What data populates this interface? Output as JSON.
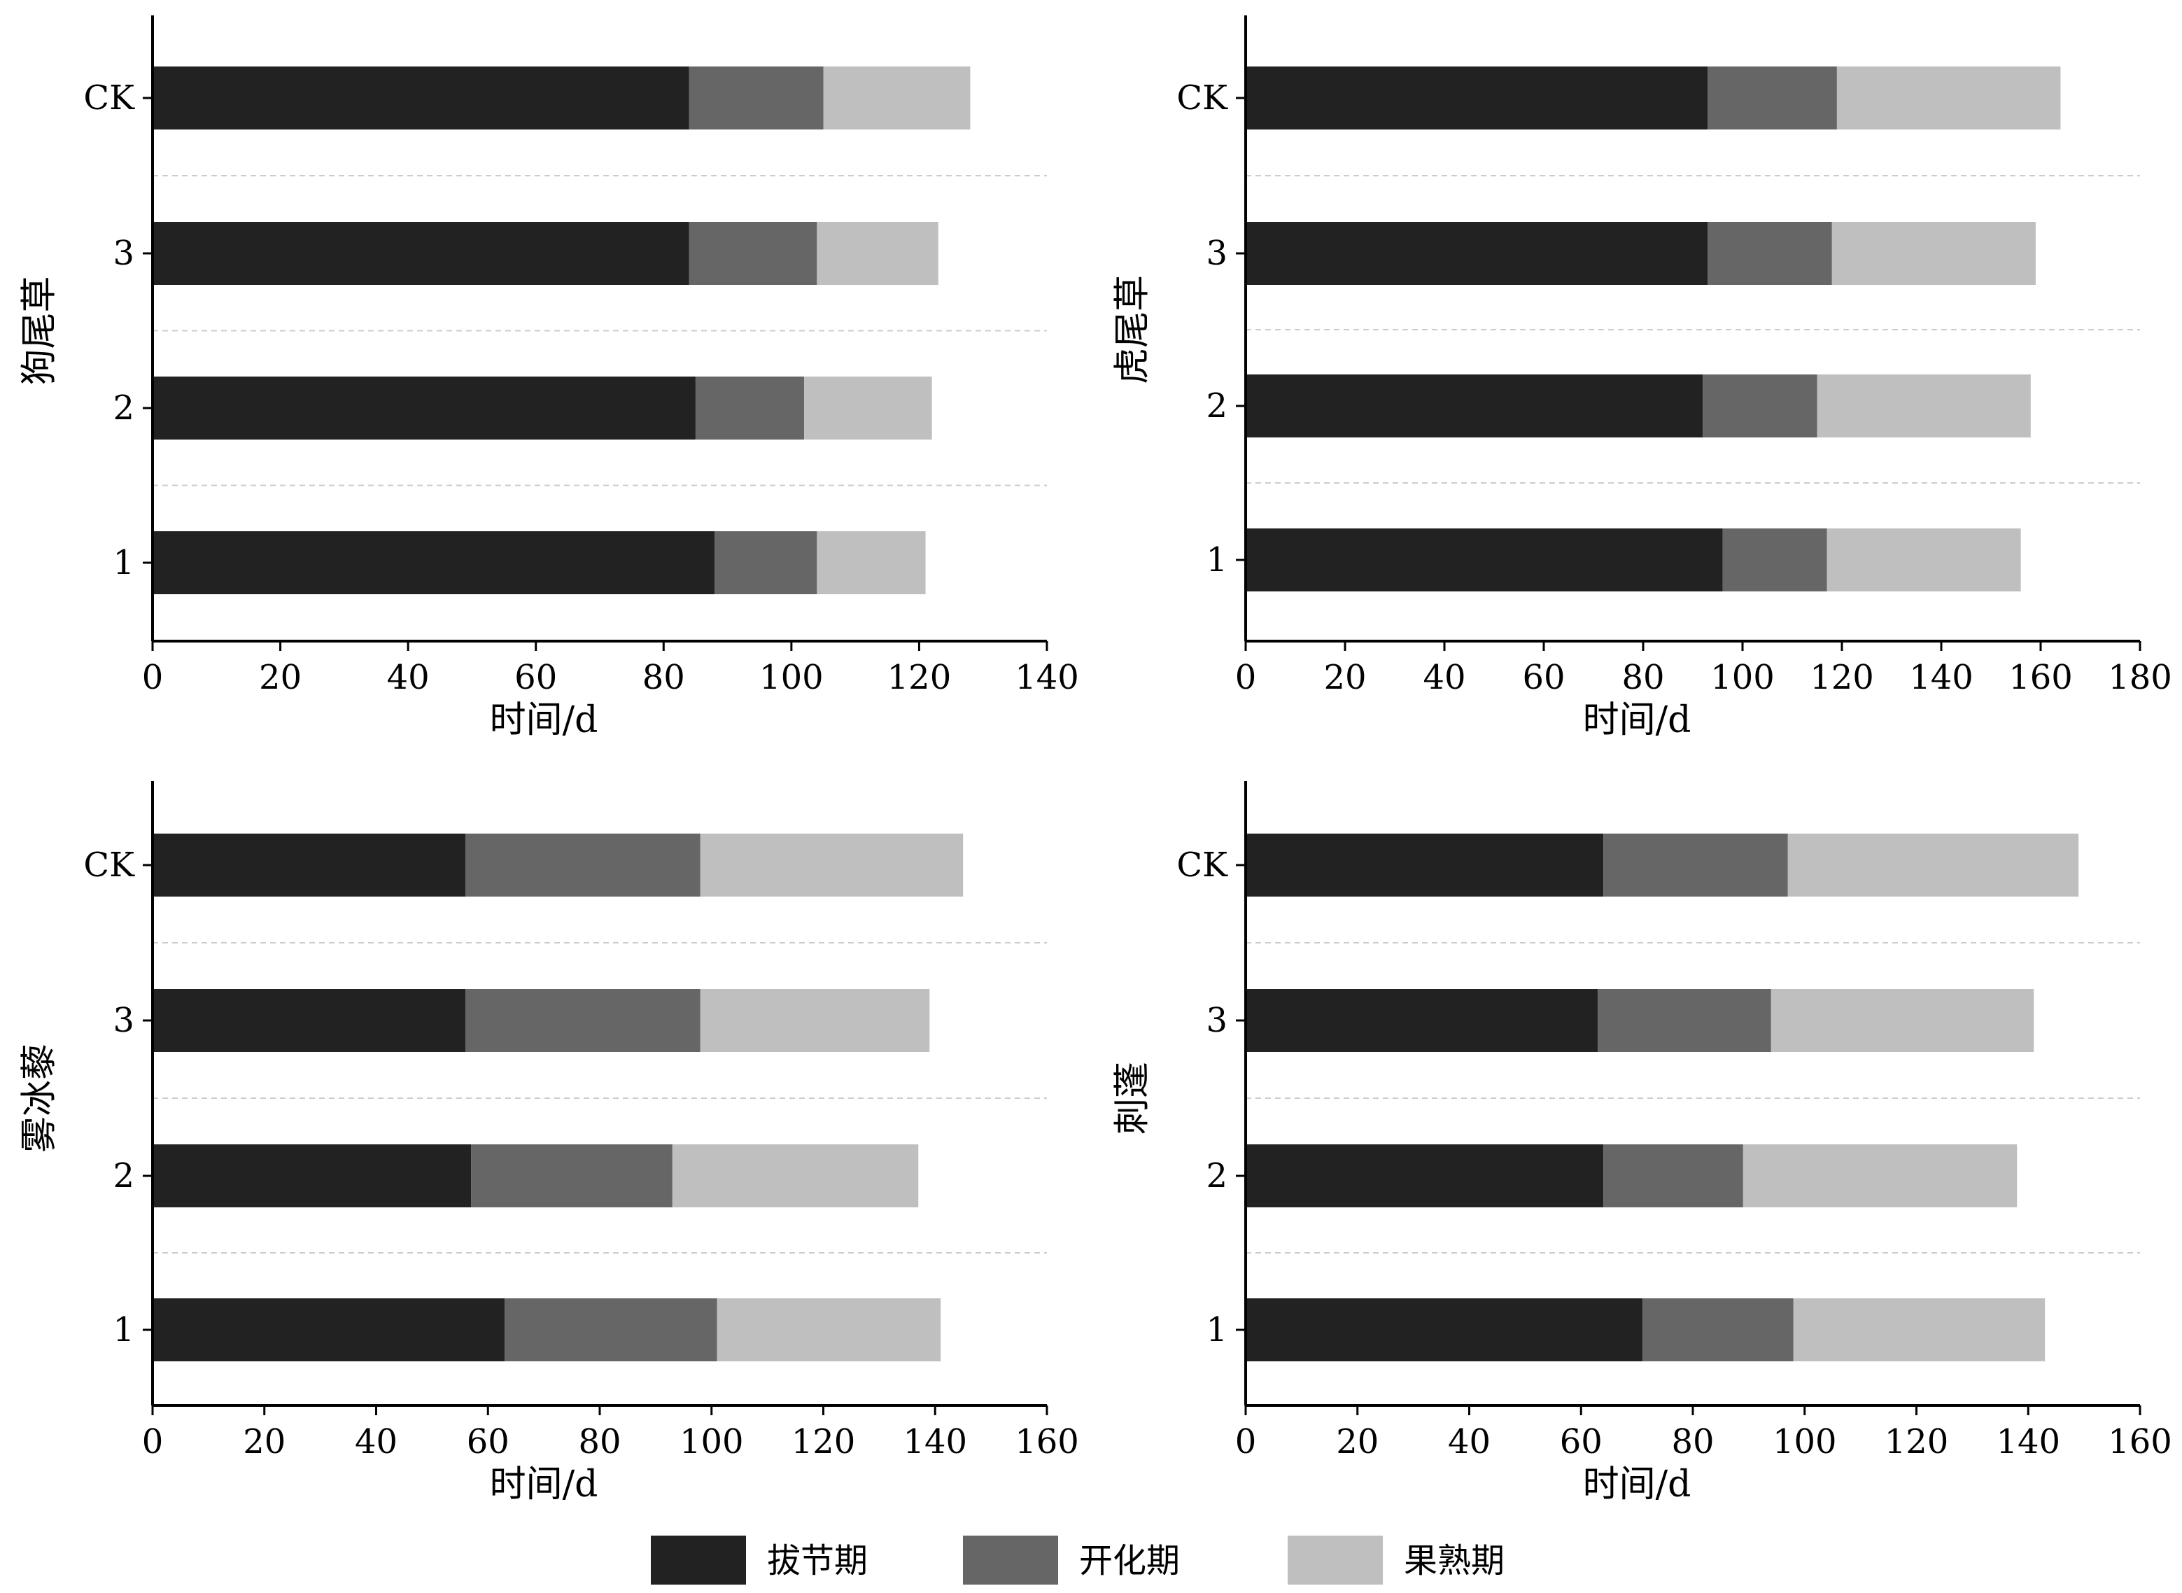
{
  "legend": {
    "items": [
      {
        "label": "拔节期",
        "color": "#222222"
      },
      {
        "label": "开化期",
        "color": "#666666"
      },
      {
        "label": "果熟期",
        "color": "#bfbfbf"
      }
    ]
  },
  "chart_data": [
    {
      "type": "bar",
      "orientation": "horizontal",
      "stacked": true,
      "ylabel": "狗尾草",
      "xlabel": "时间/d",
      "xlim": [
        0,
        140
      ],
      "xticks": [
        "0",
        "20",
        "40",
        "60",
        "80",
        "100",
        "120",
        "140"
      ],
      "categories": [
        "1",
        "2",
        "3",
        "CK"
      ],
      "series": [
        {
          "name": "拔节期",
          "values": [
            88,
            85,
            84,
            84
          ]
        },
        {
          "name": "开化期",
          "values": [
            16,
            17,
            20,
            21
          ]
        },
        {
          "name": "果熟期",
          "values": [
            17,
            20,
            19,
            23
          ]
        }
      ],
      "grid": "dashed lines between categories"
    },
    {
      "type": "bar",
      "orientation": "horizontal",
      "stacked": true,
      "ylabel": "虎尾草",
      "xlabel": "时间/d",
      "xlim": [
        0,
        180
      ],
      "xticks": [
        "0",
        "20",
        "40",
        "60",
        "80",
        "100",
        "120",
        "140",
        "160",
        "180"
      ],
      "categories": [
        "1",
        "2",
        "3",
        "CK"
      ],
      "series": [
        {
          "name": "拔节期",
          "values": [
            96,
            92,
            93,
            93
          ]
        },
        {
          "name": "开化期",
          "values": [
            21,
            23,
            25,
            26
          ]
        },
        {
          "name": "果熟期",
          "values": [
            39,
            43,
            41,
            45
          ]
        }
      ],
      "grid": "dashed lines between categories"
    },
    {
      "type": "bar",
      "orientation": "horizontal",
      "stacked": true,
      "ylabel": "雾冰藜",
      "xlabel": "时间/d",
      "xlim": [
        0,
        160
      ],
      "xticks": [
        "0",
        "20",
        "40",
        "60",
        "80",
        "100",
        "120",
        "140",
        "160"
      ],
      "categories": [
        "1",
        "2",
        "3",
        "CK"
      ],
      "series": [
        {
          "name": "拔节期",
          "values": [
            63,
            57,
            56,
            56
          ]
        },
        {
          "name": "开化期",
          "values": [
            38,
            36,
            42,
            42
          ]
        },
        {
          "name": "果熟期",
          "values": [
            40,
            44,
            41,
            47
          ]
        }
      ],
      "grid": "dashed lines between categories"
    },
    {
      "type": "bar",
      "orientation": "horizontal",
      "stacked": true,
      "ylabel": "刺蓬",
      "xlabel": "时间/d",
      "xlim": [
        0,
        160
      ],
      "xticks": [
        "0",
        "20",
        "40",
        "60",
        "80",
        "100",
        "120",
        "140",
        "160"
      ],
      "categories": [
        "1",
        "2",
        "3",
        "CK"
      ],
      "series": [
        {
          "name": "拔节期",
          "values": [
            71,
            64,
            63,
            64
          ]
        },
        {
          "name": "开化期",
          "values": [
            27,
            25,
            31,
            33
          ]
        },
        {
          "name": "果熟期",
          "values": [
            45,
            49,
            47,
            52
          ]
        }
      ],
      "grid": "dashed lines between categories"
    }
  ]
}
